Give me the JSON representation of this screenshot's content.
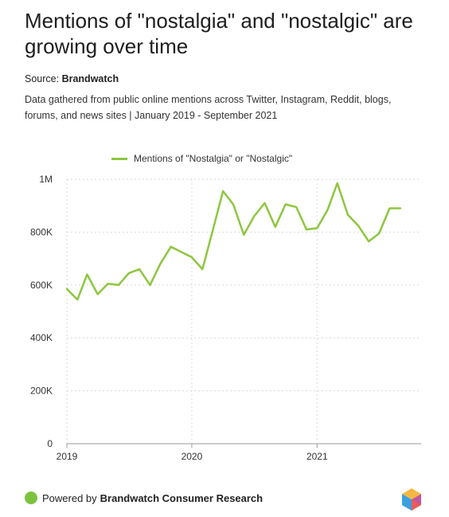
{
  "header": {
    "title": "Mentions of \"nostalgia\" and \"nostalgic\" are growing over time",
    "source_prefix": "Source:",
    "source_name": "Brandwatch",
    "description": "Data gathered from public online mentions across Twitter, Instagram, Reddit, blogs, forums, and news sites | January 2019 - September 2021"
  },
  "colors": {
    "line": "#8dc63f",
    "accent_dot": "#7cc23f"
  },
  "footer": {
    "powered_by": "Powered by",
    "brand": "Brandwatch Consumer Research",
    "logo_icon": "hexagon-cube-logo"
  },
  "chart_data": {
    "type": "line",
    "title": "Mentions of \"nostalgia\" and \"nostalgic\" are growing over time",
    "xlabel": "",
    "ylabel": "",
    "x": [
      "2019-01",
      "2019-02",
      "2019-03",
      "2019-04",
      "2019-05",
      "2019-06",
      "2019-07",
      "2019-08",
      "2019-09",
      "2019-10",
      "2019-11",
      "2019-12",
      "2020-01",
      "2020-02",
      "2020-03",
      "2020-04",
      "2020-05",
      "2020-06",
      "2020-07",
      "2020-08",
      "2020-09",
      "2020-10",
      "2020-11",
      "2020-12",
      "2021-01",
      "2021-02",
      "2021-03",
      "2021-04",
      "2021-05",
      "2021-06",
      "2021-07",
      "2021-08",
      "2021-09"
    ],
    "x_ticks": [
      "2019",
      "2020",
      "2021"
    ],
    "y_ticks": [
      "0",
      "200K",
      "400K",
      "600K",
      "800K",
      "1M"
    ],
    "ylim": [
      0,
      1000000
    ],
    "grid": true,
    "legend_position": "top",
    "series": [
      {
        "name": "Mentions of \"Nostalgia\" or \"Nostalgic\"",
        "values": [
          585000,
          545000,
          640000,
          565000,
          605000,
          600000,
          645000,
          660000,
          600000,
          680000,
          745000,
          725000,
          705000,
          660000,
          800000,
          955000,
          905000,
          790000,
          860000,
          910000,
          820000,
          905000,
          895000,
          810000,
          815000,
          885000,
          985000,
          865000,
          825000,
          765000,
          795000,
          890000,
          890000
        ]
      }
    ]
  }
}
